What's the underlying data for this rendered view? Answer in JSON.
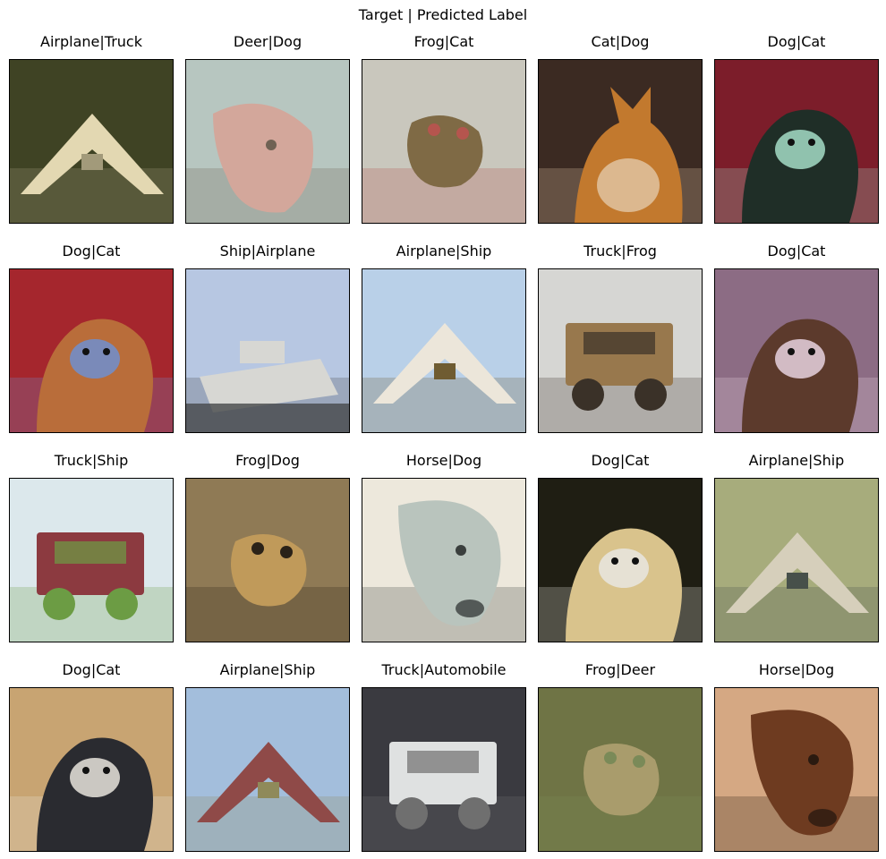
{
  "figure_title": "Target | Predicted Label",
  "panels": [
    {
      "label": "Airplane|Truck",
      "subject": "airplane",
      "colors": {
        "bg": "#3f4324",
        "fg": "#e3d8b2",
        "accent": "#a29a7a"
      }
    },
    {
      "label": "Deer|Dog",
      "subject": "deer",
      "colors": {
        "bg": "#b7c6c0",
        "fg": "#d3a79b",
        "accent": "#6f6254"
      }
    },
    {
      "label": "Frog|Cat",
      "subject": "frog",
      "colors": {
        "bg": "#c9c7bd",
        "fg": "#7f6a45",
        "accent": "#b5554e"
      }
    },
    {
      "label": "Cat|Dog",
      "subject": "cat",
      "colors": {
        "bg": "#3b2a22",
        "fg": "#c2792e",
        "accent": "#e2c8a8"
      }
    },
    {
      "label": "Dog|Cat",
      "subject": "dog",
      "colors": {
        "bg": "#7c1d2a",
        "fg": "#1f2e27",
        "accent": "#a5dcc7"
      }
    },
    {
      "label": "Dog|Cat",
      "subject": "dog",
      "colors": {
        "bg": "#a5262d",
        "fg": "#b96d3a",
        "accent": "#6f8fd0"
      }
    },
    {
      "label": "Ship|Airplane",
      "subject": "ship",
      "colors": {
        "bg": "#b7c7e2",
        "fg": "#d7d7d3",
        "accent": "#46484a"
      }
    },
    {
      "label": "Airplane|Ship",
      "subject": "airplane",
      "colors": {
        "bg": "#b9d0e8",
        "fg": "#ece6da",
        "accent": "#6f5c32"
      }
    },
    {
      "label": "Truck|Frog",
      "subject": "truck",
      "colors": {
        "bg": "#d6d6d3",
        "fg": "#98784d",
        "accent": "#3a3128"
      }
    },
    {
      "label": "Dog|Cat",
      "subject": "dog",
      "colors": {
        "bg": "#8c6c84",
        "fg": "#5c3a2c",
        "accent": "#e6d2df"
      }
    },
    {
      "label": "Truck|Ship",
      "subject": "truck",
      "colors": {
        "bg": "#dce8ec",
        "fg": "#8c3a40",
        "accent": "#6c9c44"
      }
    },
    {
      "label": "Frog|Dog",
      "subject": "frog",
      "colors": {
        "bg": "#8f7a55",
        "fg": "#c09a5a",
        "accent": "#2a2218"
      }
    },
    {
      "label": "Horse|Dog",
      "subject": "horse",
      "colors": {
        "bg": "#ede8dc",
        "fg": "#b9c4bd",
        "accent": "#3a3f3d"
      }
    },
    {
      "label": "Dog|Cat",
      "subject": "dog",
      "colors": {
        "bg": "#1f1e13",
        "fg": "#d9c38c",
        "accent": "#e8e6e0"
      }
    },
    {
      "label": "Airplane|Ship",
      "subject": "airplane",
      "colors": {
        "bg": "#a7ac7c",
        "fg": "#d6cfbb",
        "accent": "#47504a"
      }
    },
    {
      "label": "Dog|Cat",
      "subject": "dog",
      "colors": {
        "bg": "#c8a472",
        "fg": "#2a2b30",
        "accent": "#e8e4dc"
      }
    },
    {
      "label": "Airplane|Ship",
      "subject": "airplane",
      "colors": {
        "bg": "#a3bedc",
        "fg": "#8f4a48",
        "accent": "#8f8a5a"
      }
    },
    {
      "label": "Truck|Automobile",
      "subject": "truck",
      "colors": {
        "bg": "#3a3a40",
        "fg": "#dfe1e1",
        "accent": "#6f6f6f"
      }
    },
    {
      "label": "Frog|Deer",
      "subject": "frog",
      "colors": {
        "bg": "#6f7445",
        "fg": "#a99c6c",
        "accent": "#7a8a58"
      }
    },
    {
      "label": "Horse|Dog",
      "subject": "horse",
      "colors": {
        "bg": "#d5a883",
        "fg": "#6e3b20",
        "accent": "#2a1a10"
      }
    }
  ]
}
